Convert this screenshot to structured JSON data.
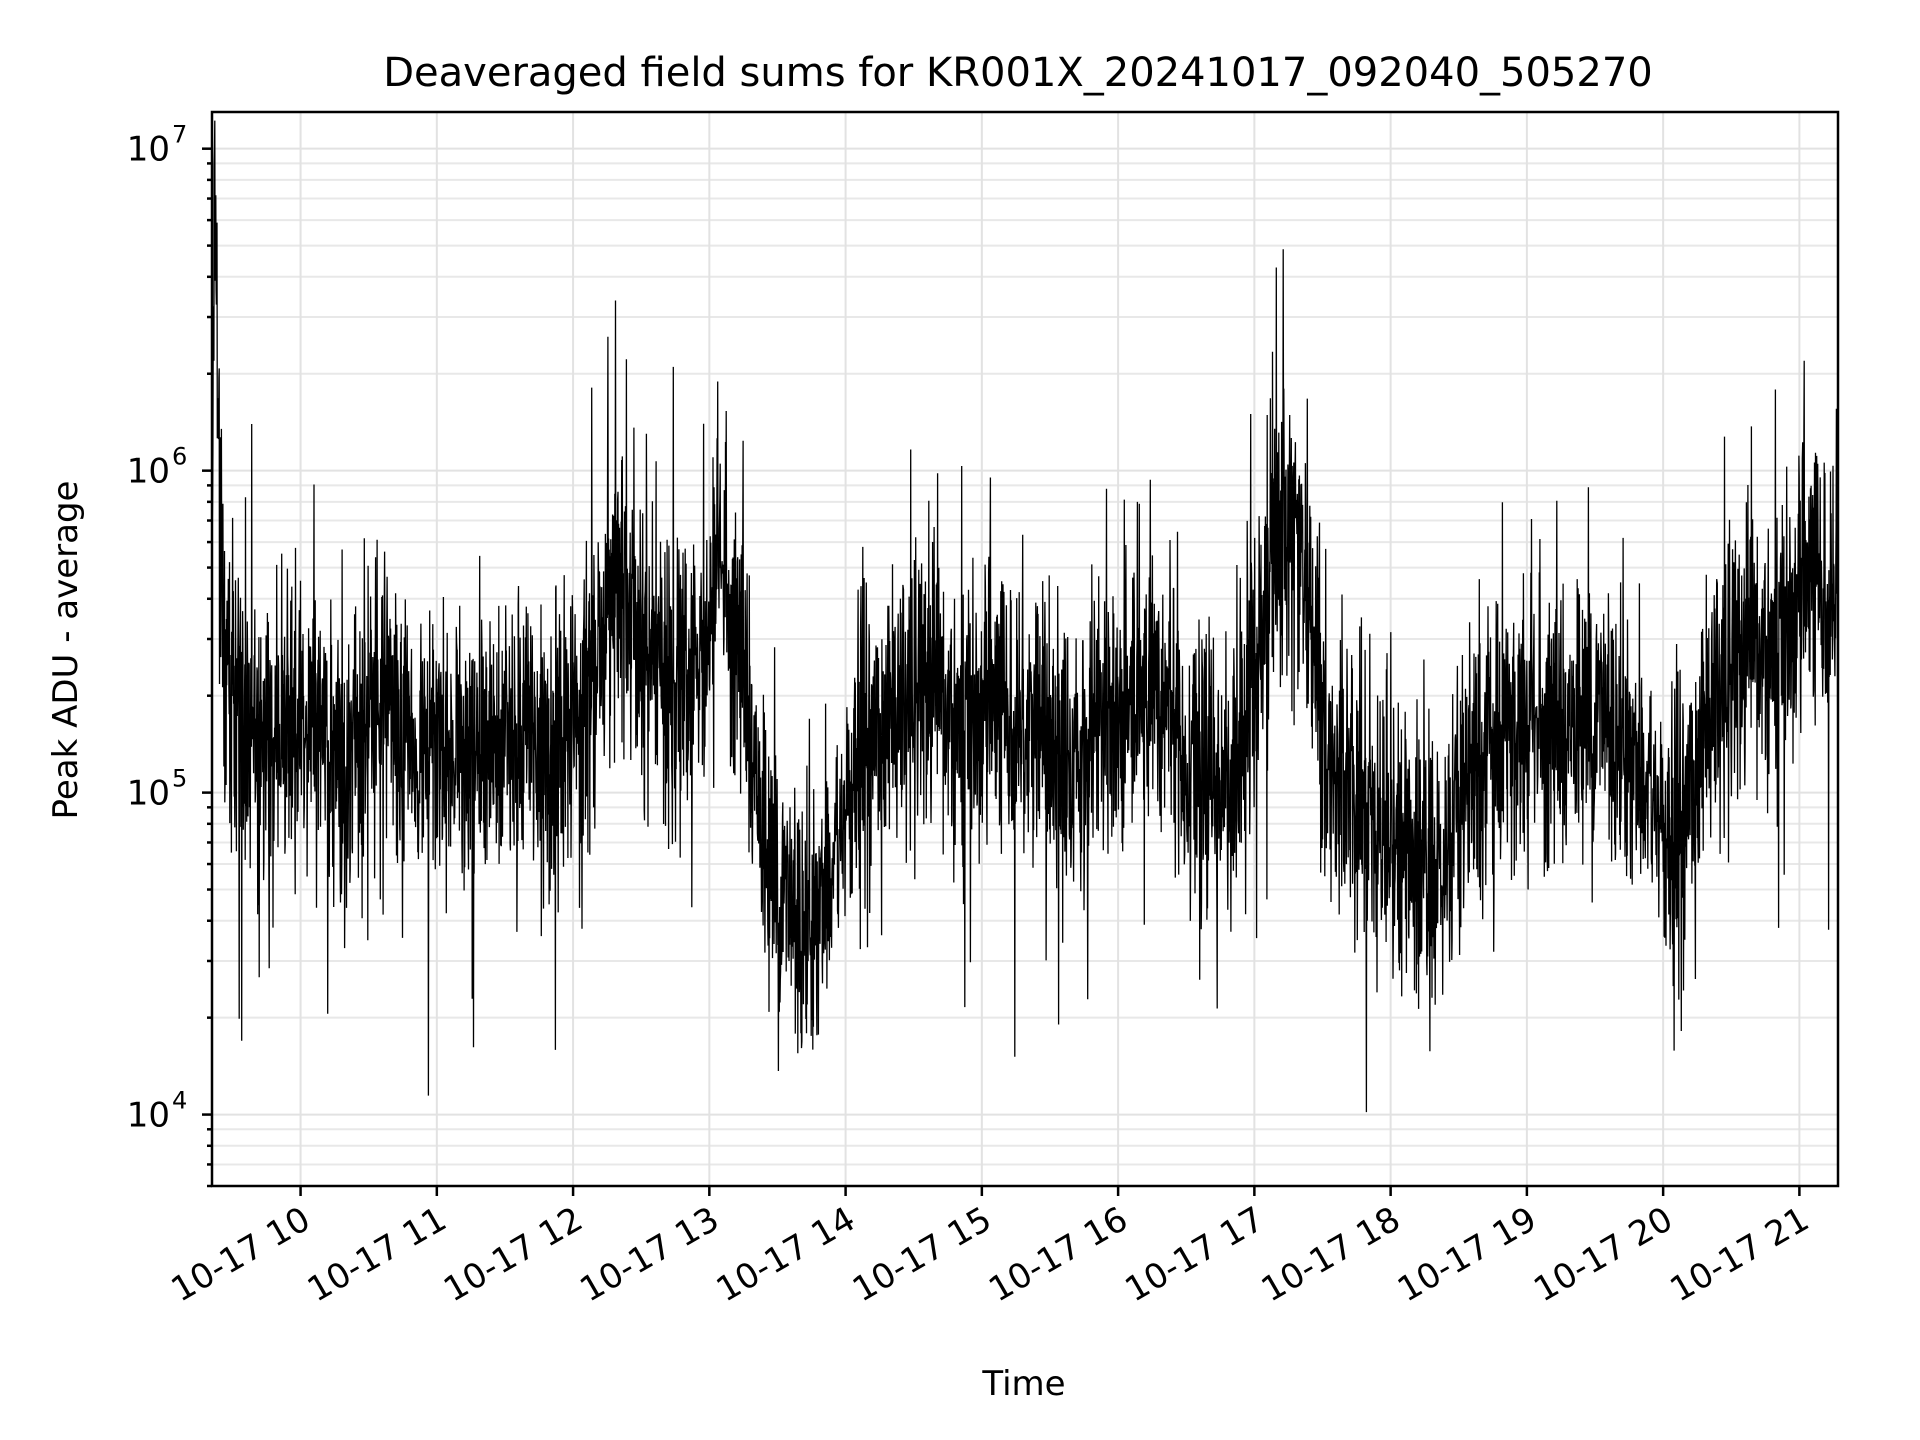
{
  "chart_data": {
    "type": "line",
    "title": "Deaveraged field sums for KR001X_20241017_092040_505270",
    "xlabel": "Time",
    "ylabel": "Peak ADU - average",
    "yscale": "log",
    "ylim": [
      6000,
      13000000
    ],
    "xlim": [
      "2024-10-17T09:21",
      "2024-10-17T21:17"
    ],
    "x_tick_labels": [
      "10-17 10",
      "10-17 11",
      "10-17 12",
      "10-17 13",
      "10-17 14",
      "10-17 15",
      "10-17 16",
      "10-17 17",
      "10-17 18",
      "10-17 19",
      "10-17 20",
      "10-17 21"
    ],
    "y_ticks": [
      {
        "value": 10000,
        "base": "10",
        "exp": "4"
      },
      {
        "value": 100000,
        "base": "10",
        "exp": "5"
      },
      {
        "value": 1000000,
        "base": "10",
        "exp": "6"
      },
      {
        "value": 10000000,
        "base": "10",
        "exp": "7"
      }
    ],
    "grid": true,
    "line_color": "#000000",
    "series": [
      {
        "x": [
          "2024-10-17T09:21",
          "2024-10-17T09:22",
          "2024-10-17T09:25",
          "2024-10-17T09:28",
          "2024-10-17T09:35",
          "2024-10-17T09:45",
          "2024-10-17T09:55",
          "2024-10-17T10:05",
          "2024-10-17T10:20",
          "2024-10-17T10:35",
          "2024-10-17T10:50",
          "2024-10-17T11:05",
          "2024-10-17T11:20",
          "2024-10-17T11:35",
          "2024-10-17T11:50",
          "2024-10-17T12:05",
          "2024-10-17T12:15",
          "2024-10-17T12:25",
          "2024-10-17T12:35",
          "2024-10-17T12:45",
          "2024-10-17T12:55",
          "2024-10-17T13:05",
          "2024-10-17T13:15",
          "2024-10-17T13:25",
          "2024-10-17T13:35",
          "2024-10-17T13:45",
          "2024-10-17T13:55",
          "2024-10-17T14:05",
          "2024-10-17T14:20",
          "2024-10-17T14:35",
          "2024-10-17T14:50",
          "2024-10-17T15:05",
          "2024-10-17T15:20",
          "2024-10-17T15:35",
          "2024-10-17T15:50",
          "2024-10-17T16:05",
          "2024-10-17T16:20",
          "2024-10-17T16:35",
          "2024-10-17T16:50",
          "2024-10-17T17:05",
          "2024-10-17T17:15",
          "2024-10-17T17:25",
          "2024-10-17T17:35",
          "2024-10-17T17:50",
          "2024-10-17T18:05",
          "2024-10-17T18:20",
          "2024-10-17T18:35",
          "2024-10-17T18:50",
          "2024-10-17T19:05",
          "2024-10-17T19:20",
          "2024-10-17T19:35",
          "2024-10-17T19:50",
          "2024-10-17T20:05",
          "2024-10-17T20:20",
          "2024-10-17T20:35",
          "2024-10-17T20:50",
          "2024-10-17T21:05",
          "2024-10-17T21:17"
        ],
        "y": [
          600000,
          8900000,
          400000,
          250000,
          160000,
          140000,
          150000,
          160000,
          120000,
          190000,
          130000,
          150000,
          140000,
          150000,
          130000,
          160000,
          350000,
          420000,
          250000,
          220000,
          200000,
          500000,
          250000,
          60000,
          45000,
          40000,
          60000,
          120000,
          180000,
          200000,
          160000,
          180000,
          170000,
          120000,
          150000,
          190000,
          220000,
          110000,
          100000,
          400000,
          850000,
          300000,
          120000,
          90000,
          70000,
          55000,
          120000,
          150000,
          170000,
          160000,
          180000,
          120000,
          60000,
          180000,
          250000,
          280000,
          450000,
          420000
        ]
      }
    ]
  }
}
